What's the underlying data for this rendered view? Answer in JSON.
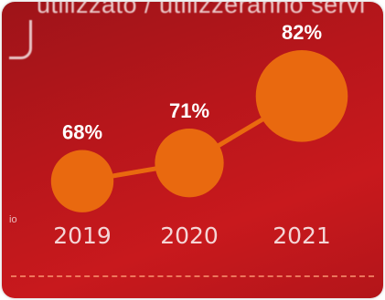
{
  "header": {
    "text": "utilizzato / utilizzeranno servi"
  },
  "side_label": "io",
  "colors": {
    "background": "#b8161b",
    "accent": "#e9690f",
    "text": "#ffffff"
  },
  "chart_data": {
    "type": "line",
    "categories": [
      "2019",
      "2020",
      "2021"
    ],
    "series": [
      {
        "values": [
          68,
          71,
          82
        ]
      }
    ],
    "value_labels": [
      "68%",
      "71%",
      "82%"
    ],
    "title": "",
    "xlabel": "",
    "ylabel": "",
    "grid": false,
    "legend": "none"
  }
}
